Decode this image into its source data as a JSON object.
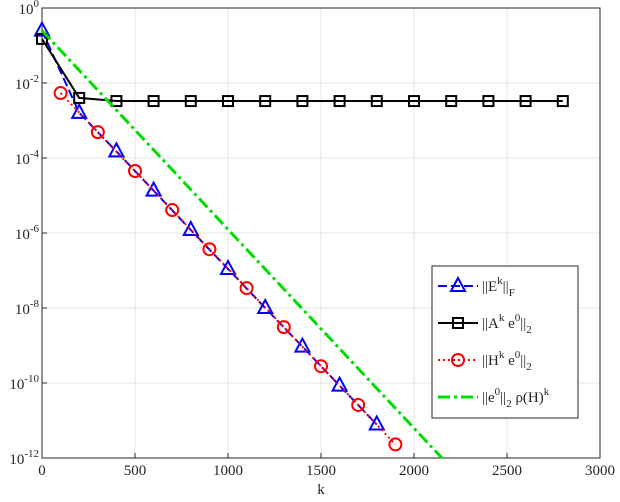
{
  "chart_data": {
    "type": "line",
    "log_y": true,
    "grid": true,
    "legend": "southeast",
    "xlabel": "k",
    "xlim": [
      0,
      3000
    ],
    "xticks": [
      0,
      500,
      1000,
      1500,
      2000,
      2500,
      3000
    ],
    "ylim": [
      1e-12,
      1
    ],
    "yticks": [
      {
        "value": 1e-12,
        "label": "10^{-12}"
      },
      {
        "value": 1e-10,
        "label": "10^{-10}"
      },
      {
        "value": 1e-08,
        "label": "10^{-8}"
      },
      {
        "value": 1e-06,
        "label": "10^{-6}"
      },
      {
        "value": 0.0001,
        "label": "10^{-4}"
      },
      {
        "value": 0.01,
        "label": "10^{-2}"
      },
      {
        "value": 1,
        "label": "10^{0}"
      }
    ],
    "series": [
      {
        "name": "||E^{k}||_{F}",
        "color": "#0000ff",
        "dash": "9 4",
        "marker": "triangle",
        "x": [
          0,
          200,
          400,
          600,
          800,
          1000,
          1200,
          1400,
          1600,
          1800
        ],
        "values": [
          0.25,
          0.0016,
          0.00015,
          1.35e-05,
          1.2e-06,
          1.1e-07,
          1e-08,
          9.3e-10,
          8.5e-11,
          7.8e-12
        ]
      },
      {
        "name": "||A^{k} e^{0}||_{2}",
        "color": "#000000",
        "dash": "none",
        "marker": "square",
        "x": [
          0,
          200,
          400,
          600,
          800,
          1000,
          1200,
          1400,
          1600,
          1800,
          2000,
          2200,
          2400,
          2600,
          2800
        ],
        "values": [
          0.15,
          0.004,
          0.0033,
          0.0033,
          0.0033,
          0.0033,
          0.0033,
          0.0033,
          0.0033,
          0.0033,
          0.0033,
          0.0033,
          0.0033,
          0.0033,
          0.0033
        ]
      },
      {
        "name": "||H^{k} e^{0}||_{2}",
        "color": "#ff0000",
        "dash": "2 3",
        "marker": "circle",
        "x": [
          100,
          300,
          500,
          700,
          900,
          1100,
          1300,
          1500,
          1700,
          1900
        ],
        "values": [
          0.0054,
          0.00049,
          4.5e-05,
          4.1e-06,
          3.7e-07,
          3.4e-08,
          3.1e-09,
          2.8e-10,
          2.6e-11,
          2.3e-12
        ]
      },
      {
        "name": "||e^{0}||_{2} ρ(H)^{k}",
        "color": "#00dd00",
        "dash": "12 4 3 4",
        "marker": "none",
        "x": [
          0,
          2150
        ],
        "values": [
          0.25,
          1e-12
        ]
      }
    ]
  }
}
